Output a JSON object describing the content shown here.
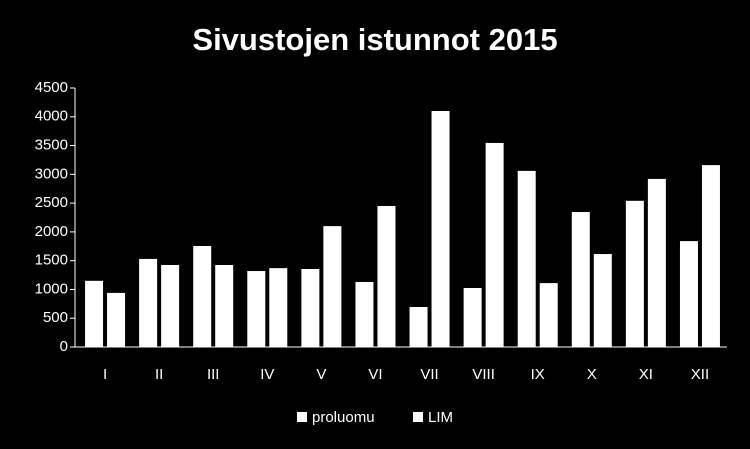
{
  "chart_data": {
    "type": "bar",
    "title": "Sivustojen istunnot 2015",
    "categories": [
      "I",
      "II",
      "III",
      "IV",
      "V",
      "VI",
      "VII",
      "VIII",
      "IX",
      "X",
      "XI",
      "XII"
    ],
    "series": [
      {
        "name": "proluomu",
        "color": "#ffffff",
        "values": [
          1150,
          1530,
          1755,
          1320,
          1355,
          1130,
          695,
          1025,
          3060,
          2345,
          2540,
          1840
        ]
      },
      {
        "name": "LIM",
        "color": "#ffffff",
        "values": [
          940,
          1425,
          1425,
          1370,
          2100,
          2450,
          4100,
          3545,
          1110,
          1615,
          2920,
          3160
        ]
      }
    ],
    "ylim": [
      0,
      4500
    ],
    "yticks": [
      0,
      500,
      1000,
      1500,
      2000,
      2500,
      3000,
      3500,
      4000,
      4500
    ],
    "grid": false,
    "legend": "bottom"
  }
}
